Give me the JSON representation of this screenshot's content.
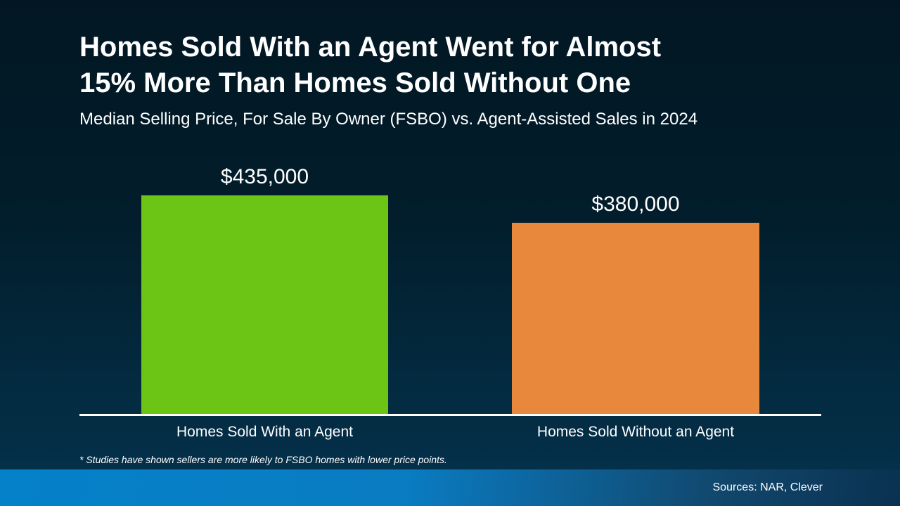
{
  "header": {
    "title_lines": [
      "Homes Sold With an Agent Went for Almost",
      "15% More Than Homes Sold Without One"
    ],
    "subtitle": "Median Selling Price, For Sale By Owner (FSBO) vs. Agent-Assisted Sales in 2024"
  },
  "chart_data": {
    "type": "bar",
    "title": "Homes Sold With an Agent Went for Almost 15% More Than Homes Sold Without One",
    "subtitle": "Median Selling Price, For Sale By Owner (FSBO) vs. Agent-Assisted Sales in 2024",
    "categories": [
      "Homes Sold With an Agent",
      "Homes Sold Without an Agent"
    ],
    "values": [
      435000,
      380000
    ],
    "value_labels": [
      "$435,000",
      "$380,000"
    ],
    "bar_colors": [
      "#6cc514",
      "#e8883c"
    ],
    "xlabel": "",
    "ylabel": "",
    "ylim": [
      0,
      435000
    ],
    "grid": false,
    "legend": false,
    "year": "2024"
  },
  "footnote": "* Studies have shown sellers are more likely to FSBO homes with lower price points.",
  "footer": {
    "sources": "Sources: NAR, Clever"
  },
  "colors": {
    "background_top": "#021723",
    "background_bottom": "#04304a",
    "bar_agent_green": "#6cc514",
    "bar_fsbo_orange": "#e8883c",
    "axis_line": "#ffffff",
    "text": "#ffffff",
    "footer_blue_left": "#0481c9",
    "footer_navy_right": "#0a3150"
  }
}
